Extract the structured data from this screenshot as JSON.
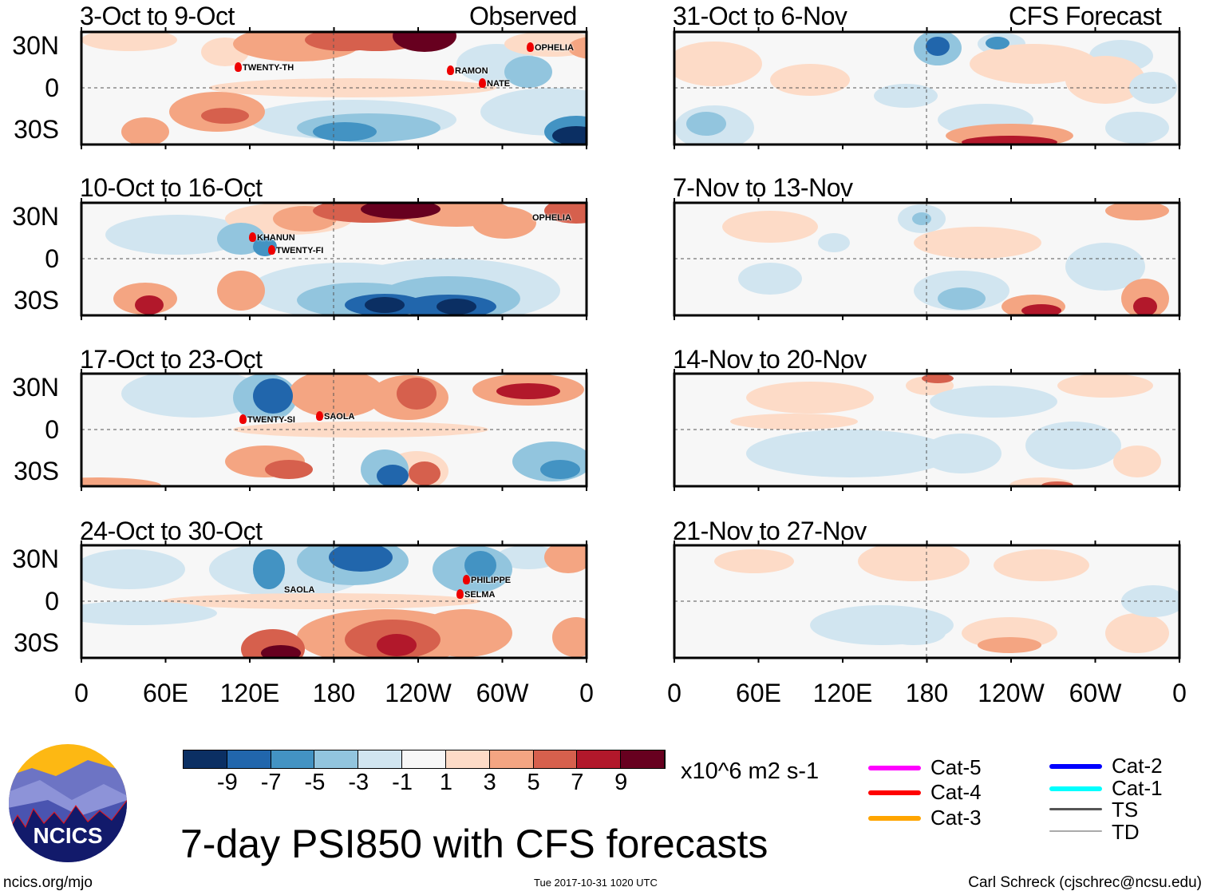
{
  "header": {
    "observed_label": "Observed",
    "forecast_label": "CFS Forecast"
  },
  "panels_observed": [
    {
      "title": "3-Oct to 9-Oct",
      "storms": [
        "TWENTY-TH",
        "RAMON",
        "NATE",
        "OPHELIA"
      ]
    },
    {
      "title": "10-Oct to 16-Oct",
      "storms": [
        "KHANUN",
        "TWENTY-FI",
        "OPHELIA"
      ]
    },
    {
      "title": "17-Oct to 23-Oct",
      "storms": [
        "TWENTY-SI",
        "SAOLA"
      ]
    },
    {
      "title": "24-Oct to 30-Oct",
      "storms": [
        "SAOLA",
        "PHILIPPE",
        "SELMA"
      ]
    }
  ],
  "panels_forecast": [
    {
      "title": "31-Oct to 6-Nov"
    },
    {
      "title": "7-Nov to 13-Nov"
    },
    {
      "title": "14-Nov to 20-Nov"
    },
    {
      "title": "21-Nov to 27-Nov"
    }
  ],
  "y_axis": [
    "30N",
    "0",
    "30S"
  ],
  "x_axis": [
    "0",
    "60E",
    "120E",
    "180",
    "120W",
    "60W",
    "0"
  ],
  "colorbar": {
    "ticks": [
      "-9",
      "-7",
      "-5",
      "-3",
      "-1",
      "1",
      "3",
      "5",
      "7",
      "9"
    ],
    "colors": [
      "#0b2f63",
      "#2166ac",
      "#4393c3",
      "#92c5de",
      "#d1e5f0",
      "#f7f7f7",
      "#fddbc7",
      "#f4a582",
      "#d6604d",
      "#b2182b",
      "#67001f"
    ],
    "units": "x10^6 m2 s-1"
  },
  "legend": [
    {
      "label": "Cat-5",
      "color": "#ff00ff"
    },
    {
      "label": "Cat-4",
      "color": "#ff0000"
    },
    {
      "label": "Cat-3",
      "color": "#ffa500"
    },
    {
      "label": "Cat-2",
      "color": "#0000ff"
    },
    {
      "label": "Cat-1",
      "color": "#00ffff"
    },
    {
      "label": "TS",
      "color": "#555555"
    },
    {
      "label": "TD",
      "color": "#aaaaaa"
    }
  ],
  "footer": {
    "title": "7-day PSI850 with CFS forecasts",
    "site": "ncics.org/mjo",
    "timestamp": "Tue 2017-10-31 1020 UTC",
    "author": "Carl Schreck (cjschrec@ncsu.edu)",
    "logo_text": "NCICS"
  }
}
